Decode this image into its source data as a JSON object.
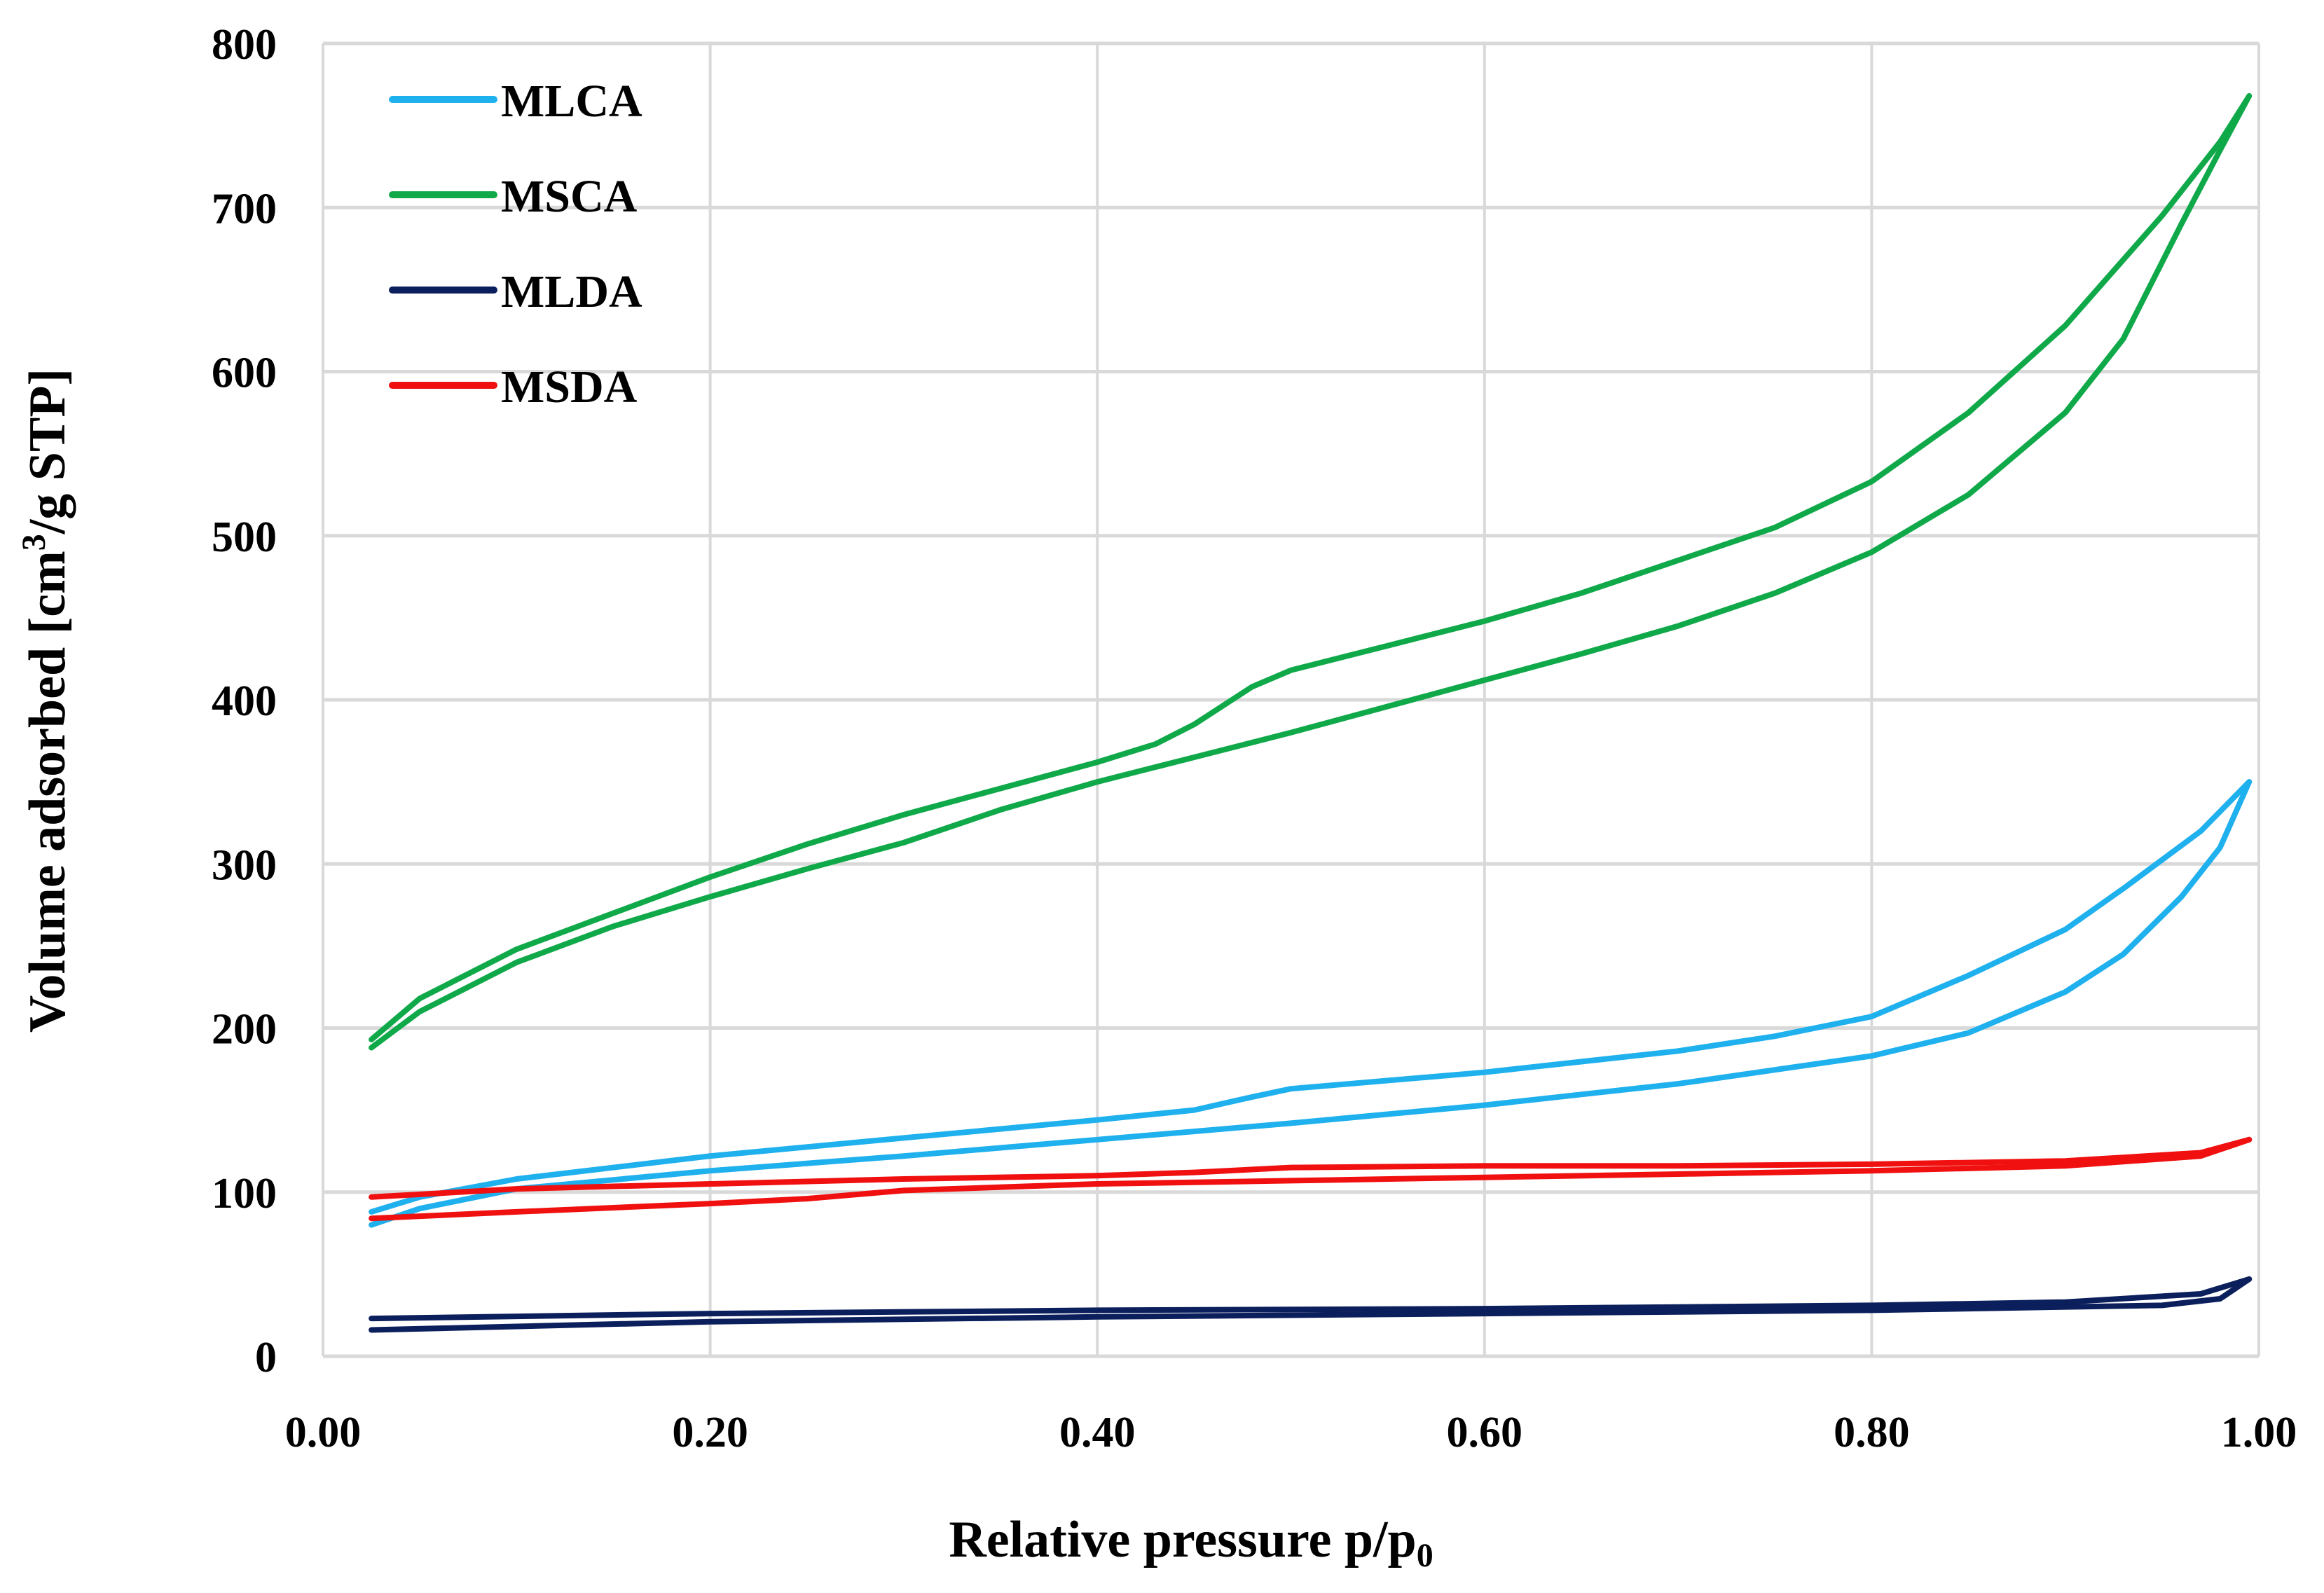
{
  "chart_data": {
    "type": "line",
    "title": "",
    "xlabel": "Relative pressure p/p",
    "xlabel_sub": "0",
    "ylabel": "Volume adsorbed [cm",
    "ylabel_sup": "3",
    "ylabel_tail": "/g STP]",
    "xlim": [
      0,
      1
    ],
    "ylim": [
      0,
      800
    ],
    "xticks": [
      0,
      0.2,
      0.4,
      0.6,
      0.8,
      1.0
    ],
    "xtick_labels": [
      "0.00",
      "0.20",
      "0.40",
      "0.60",
      "0.80",
      "1.00"
    ],
    "yticks": [
      0,
      100,
      200,
      300,
      400,
      500,
      600,
      700,
      800
    ],
    "ytick_labels": [
      "0",
      "100",
      "200",
      "300",
      "400",
      "500",
      "600",
      "700",
      "800"
    ],
    "grid": true,
    "legend_position": "top-left",
    "series": [
      {
        "name": "MLCA",
        "color": "#1fb0ee",
        "adsorption": [
          [
            0.025,
            80
          ],
          [
            0.05,
            90
          ],
          [
            0.1,
            102
          ],
          [
            0.2,
            113
          ],
          [
            0.3,
            122
          ],
          [
            0.4,
            132
          ],
          [
            0.5,
            142
          ],
          [
            0.6,
            153
          ],
          [
            0.7,
            166
          ],
          [
            0.8,
            183
          ],
          [
            0.85,
            197
          ],
          [
            0.9,
            222
          ],
          [
            0.93,
            245
          ],
          [
            0.96,
            280
          ],
          [
            0.98,
            310
          ],
          [
            0.995,
            350
          ]
        ],
        "desorption": [
          [
            0.995,
            350
          ],
          [
            0.97,
            320
          ],
          [
            0.93,
            285
          ],
          [
            0.9,
            260
          ],
          [
            0.85,
            232
          ],
          [
            0.8,
            207
          ],
          [
            0.75,
            195
          ],
          [
            0.7,
            186
          ],
          [
            0.6,
            173
          ],
          [
            0.5,
            163
          ],
          [
            0.48,
            158
          ],
          [
            0.45,
            150
          ],
          [
            0.4,
            144
          ],
          [
            0.3,
            133
          ],
          [
            0.2,
            122
          ],
          [
            0.1,
            108
          ],
          [
            0.05,
            97
          ],
          [
            0.025,
            88
          ]
        ]
      },
      {
        "name": "MSCA",
        "color": "#10a94a",
        "adsorption": [
          [
            0.025,
            188
          ],
          [
            0.05,
            210
          ],
          [
            0.1,
            240
          ],
          [
            0.15,
            262
          ],
          [
            0.2,
            280
          ],
          [
            0.25,
            297
          ],
          [
            0.3,
            313
          ],
          [
            0.35,
            333
          ],
          [
            0.4,
            350
          ],
          [
            0.45,
            365
          ],
          [
            0.5,
            380
          ],
          [
            0.55,
            396
          ],
          [
            0.6,
            412
          ],
          [
            0.65,
            428
          ],
          [
            0.7,
            445
          ],
          [
            0.75,
            465
          ],
          [
            0.8,
            490
          ],
          [
            0.85,
            525
          ],
          [
            0.9,
            575
          ],
          [
            0.93,
            620
          ],
          [
            0.96,
            690
          ],
          [
            0.98,
            735
          ],
          [
            0.995,
            768
          ]
        ],
        "desorption": [
          [
            0.995,
            768
          ],
          [
            0.98,
            740
          ],
          [
            0.95,
            695
          ],
          [
            0.9,
            628
          ],
          [
            0.85,
            575
          ],
          [
            0.8,
            533
          ],
          [
            0.75,
            505
          ],
          [
            0.7,
            485
          ],
          [
            0.65,
            465
          ],
          [
            0.6,
            448
          ],
          [
            0.55,
            433
          ],
          [
            0.5,
            418
          ],
          [
            0.48,
            408
          ],
          [
            0.45,
            385
          ],
          [
            0.43,
            373
          ],
          [
            0.4,
            362
          ],
          [
            0.35,
            346
          ],
          [
            0.3,
            330
          ],
          [
            0.25,
            312
          ],
          [
            0.2,
            292
          ],
          [
            0.15,
            270
          ],
          [
            0.1,
            248
          ],
          [
            0.05,
            218
          ],
          [
            0.025,
            193
          ]
        ]
      },
      {
        "name": "MLDA",
        "color": "#0b1f5c",
        "adsorption": [
          [
            0.025,
            16
          ],
          [
            0.2,
            21
          ],
          [
            0.4,
            24
          ],
          [
            0.6,
            26
          ],
          [
            0.8,
            28
          ],
          [
            0.95,
            31
          ],
          [
            0.98,
            35
          ],
          [
            0.995,
            47
          ]
        ],
        "desorption": [
          [
            0.995,
            47
          ],
          [
            0.97,
            38
          ],
          [
            0.9,
            33
          ],
          [
            0.8,
            31
          ],
          [
            0.6,
            29
          ],
          [
            0.4,
            28
          ],
          [
            0.2,
            26
          ],
          [
            0.025,
            23
          ]
        ]
      },
      {
        "name": "MSDA",
        "color": "#f01010",
        "adsorption": [
          [
            0.025,
            84
          ],
          [
            0.1,
            88
          ],
          [
            0.2,
            93
          ],
          [
            0.25,
            96
          ],
          [
            0.3,
            101
          ],
          [
            0.4,
            105
          ],
          [
            0.5,
            107
          ],
          [
            0.6,
            109
          ],
          [
            0.7,
            111
          ],
          [
            0.8,
            113
          ],
          [
            0.9,
            116
          ],
          [
            0.97,
            122
          ],
          [
            0.995,
            132
          ]
        ],
        "desorption": [
          [
            0.995,
            132
          ],
          [
            0.97,
            124
          ],
          [
            0.9,
            119
          ],
          [
            0.8,
            117
          ],
          [
            0.7,
            116
          ],
          [
            0.6,
            116
          ],
          [
            0.5,
            115
          ],
          [
            0.45,
            112
          ],
          [
            0.4,
            110
          ],
          [
            0.3,
            108
          ],
          [
            0.2,
            105
          ],
          [
            0.1,
            102
          ],
          [
            0.025,
            97
          ]
        ]
      }
    ]
  }
}
